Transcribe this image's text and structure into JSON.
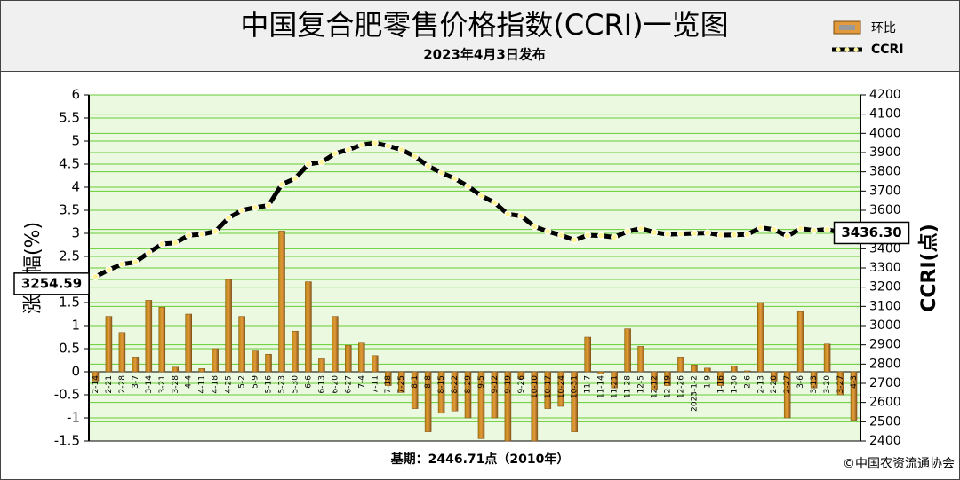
{
  "chart_data": {
    "type": "bar_line",
    "title": "中国复合肥零售价格指数(CCRI)一览图",
    "subtitle": "2023年4月3日发布",
    "y_label": "涨跌幅(%)",
    "y2_label": "CCRI(点)",
    "footnote": "基期：2446.71点（2010年）",
    "source": "©中国农资流通协会",
    "categories": [
      "2-14",
      "2-21",
      "2-28",
      "3-7",
      "3-14",
      "3-21",
      "3-28",
      "4-4",
      "4-11",
      "4-18",
      "4-25",
      "5-2",
      "5-9",
      "5-16",
      "5-23",
      "5-30",
      "6-6",
      "6-13",
      "6-20",
      "6-27",
      "7-4",
      "7-11",
      "7-18",
      "7-25",
      "8-1",
      "8-8",
      "8-15",
      "8-22",
      "8-29",
      "9-5",
      "9-12",
      "9-19",
      "9-26",
      "10-10",
      "10-17",
      "10-24",
      "10-31",
      "11-7",
      "11-14",
      "11-21",
      "11-28",
      "12-5",
      "12-12",
      "12-19",
      "12-26",
      "2023-1-2",
      "1-9",
      "1-16",
      "1-30",
      "2-6",
      "2-13",
      "2-20",
      "2-27",
      "3-6",
      "3-13",
      "3-20",
      "3-27",
      "4-3"
    ],
    "series": [
      {
        "name": "环比",
        "type": "bar",
        "color": "#e39a3c",
        "axis": "y",
        "values": [
          -0.2,
          1.2,
          0.85,
          0.32,
          1.55,
          1.4,
          0.1,
          1.25,
          0.07,
          0.5,
          2.0,
          1.2,
          0.45,
          0.38,
          3.05,
          0.88,
          1.95,
          0.28,
          1.2,
          0.57,
          0.62,
          0.35,
          -0.3,
          -0.45,
          -0.8,
          -1.3,
          -0.9,
          -0.85,
          -1.0,
          -1.45,
          -1.0,
          -1.5,
          -0.15,
          -1.5,
          -0.8,
          -0.75,
          -1.3,
          0.75,
          -0.05,
          -0.35,
          0.93,
          0.55,
          -0.4,
          -0.3,
          0.32,
          0.15,
          0.08,
          -0.3,
          0.13,
          0.02,
          1.5,
          -0.2,
          -1.0,
          1.3,
          -0.35,
          0.6,
          -0.5,
          -1.05
        ]
      },
      {
        "name": "CCRI",
        "type": "line",
        "color": "#000000",
        "axis": "y2",
        "values": [
          3254.59,
          3290,
          3320,
          3330,
          3380,
          3425,
          3430,
          3470,
          3475,
          3490,
          3560,
          3600,
          3615,
          3625,
          3735,
          3765,
          3840,
          3850,
          3895,
          3915,
          3940,
          3950,
          3935,
          3915,
          3880,
          3830,
          3795,
          3765,
          3725,
          3675,
          3640,
          3580,
          3570,
          3515,
          3490,
          3470,
          3445,
          3470,
          3468,
          3460,
          3490,
          3505,
          3485,
          3475,
          3477,
          3480,
          3482,
          3471,
          3472,
          3474,
          3510,
          3500,
          3465,
          3505,
          3495,
          3500,
          3485,
          3436.3
        ],
        "value_labels": [
          "3254.59",
          null,
          null,
          null,
          null,
          null,
          null,
          null,
          null,
          null,
          null,
          null,
          null,
          null,
          null,
          null,
          null,
          null,
          null,
          null,
          null,
          null,
          null,
          null,
          null,
          null,
          null,
          null,
          null,
          null,
          null,
          null,
          null,
          null,
          null,
          null,
          null,
          null,
          null,
          null,
          null,
          null,
          null,
          null,
          null,
          null,
          null,
          null,
          null,
          null,
          null,
          null,
          null,
          null,
          null,
          null,
          null,
          "3436.30"
        ]
      }
    ],
    "ylim": [
      -1.5,
      6
    ],
    "yticks": [
      -1.5,
      -1,
      -0.5,
      0,
      0.5,
      1,
      1.5,
      2,
      2.5,
      3,
      3.5,
      4,
      4.5,
      5,
      5.5,
      6
    ],
    "y2lim": [
      2400,
      4200
    ],
    "y2ticks": [
      2400,
      2500,
      2600,
      2700,
      2800,
      2900,
      3000,
      3100,
      3200,
      3300,
      3400,
      3500,
      3600,
      3700,
      3800,
      3900,
      4000,
      4100,
      4200
    ],
    "grid": true,
    "grid_color": "#66cc33",
    "legend": "top-right"
  }
}
